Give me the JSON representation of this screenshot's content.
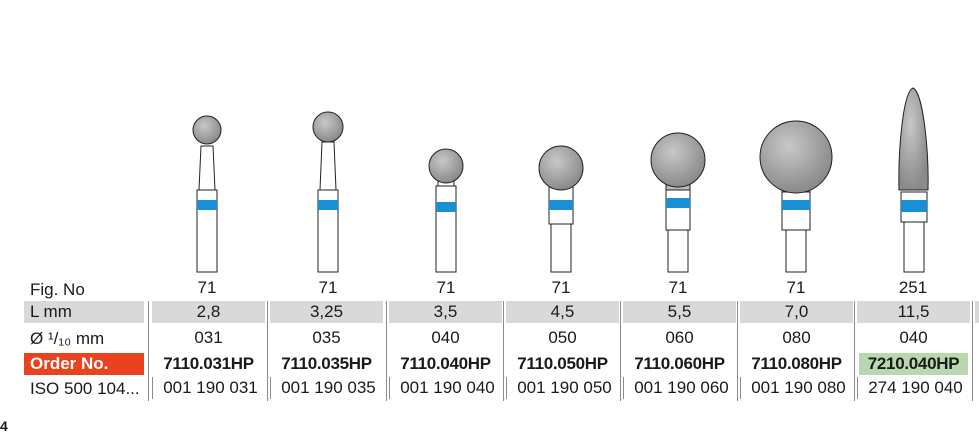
{
  "labels": {
    "fig_no": "Fig. No",
    "l_mm": "L mm",
    "diameter": "Ø ¹/₁₀ mm",
    "order_no": "Order No.",
    "iso": "ISO 500 104..."
  },
  "products": [
    {
      "fig": "71",
      "l": "2,8",
      "d": "031",
      "order": "7110.031HP",
      "iso": "001 190 031"
    },
    {
      "fig": "71",
      "l": "3,25",
      "d": "035",
      "order": "7110.035HP",
      "iso": "001 190 035"
    },
    {
      "fig": "71",
      "l": "3,5",
      "d": "040",
      "order": "7110.040HP",
      "iso": "001 190 040"
    },
    {
      "fig": "71",
      "l": "4,5",
      "d": "050",
      "order": "7110.050HP",
      "iso": "001 190 050"
    },
    {
      "fig": "71",
      "l": "5,5",
      "d": "060",
      "order": "7110.060HP",
      "iso": "001 190 060"
    },
    {
      "fig": "71",
      "l": "7,0",
      "d": "080",
      "order": "7110.080HP",
      "iso": "001 190 080"
    },
    {
      "fig": "251",
      "l": "11,5",
      "d": "040",
      "order": "7210.040HP",
      "iso": "274 190 040"
    }
  ],
  "highlighted_order": "7210.040HP",
  "colors": {
    "order_label_bg": "#e8431e",
    "band_blue": "#1a8fd6",
    "row_gray": "#d9d9d9",
    "highlight_green": "#b8d8b0"
  },
  "icons": [
    "round-bur-icon",
    "oval-bur-icon"
  ],
  "footer_mark": "4"
}
